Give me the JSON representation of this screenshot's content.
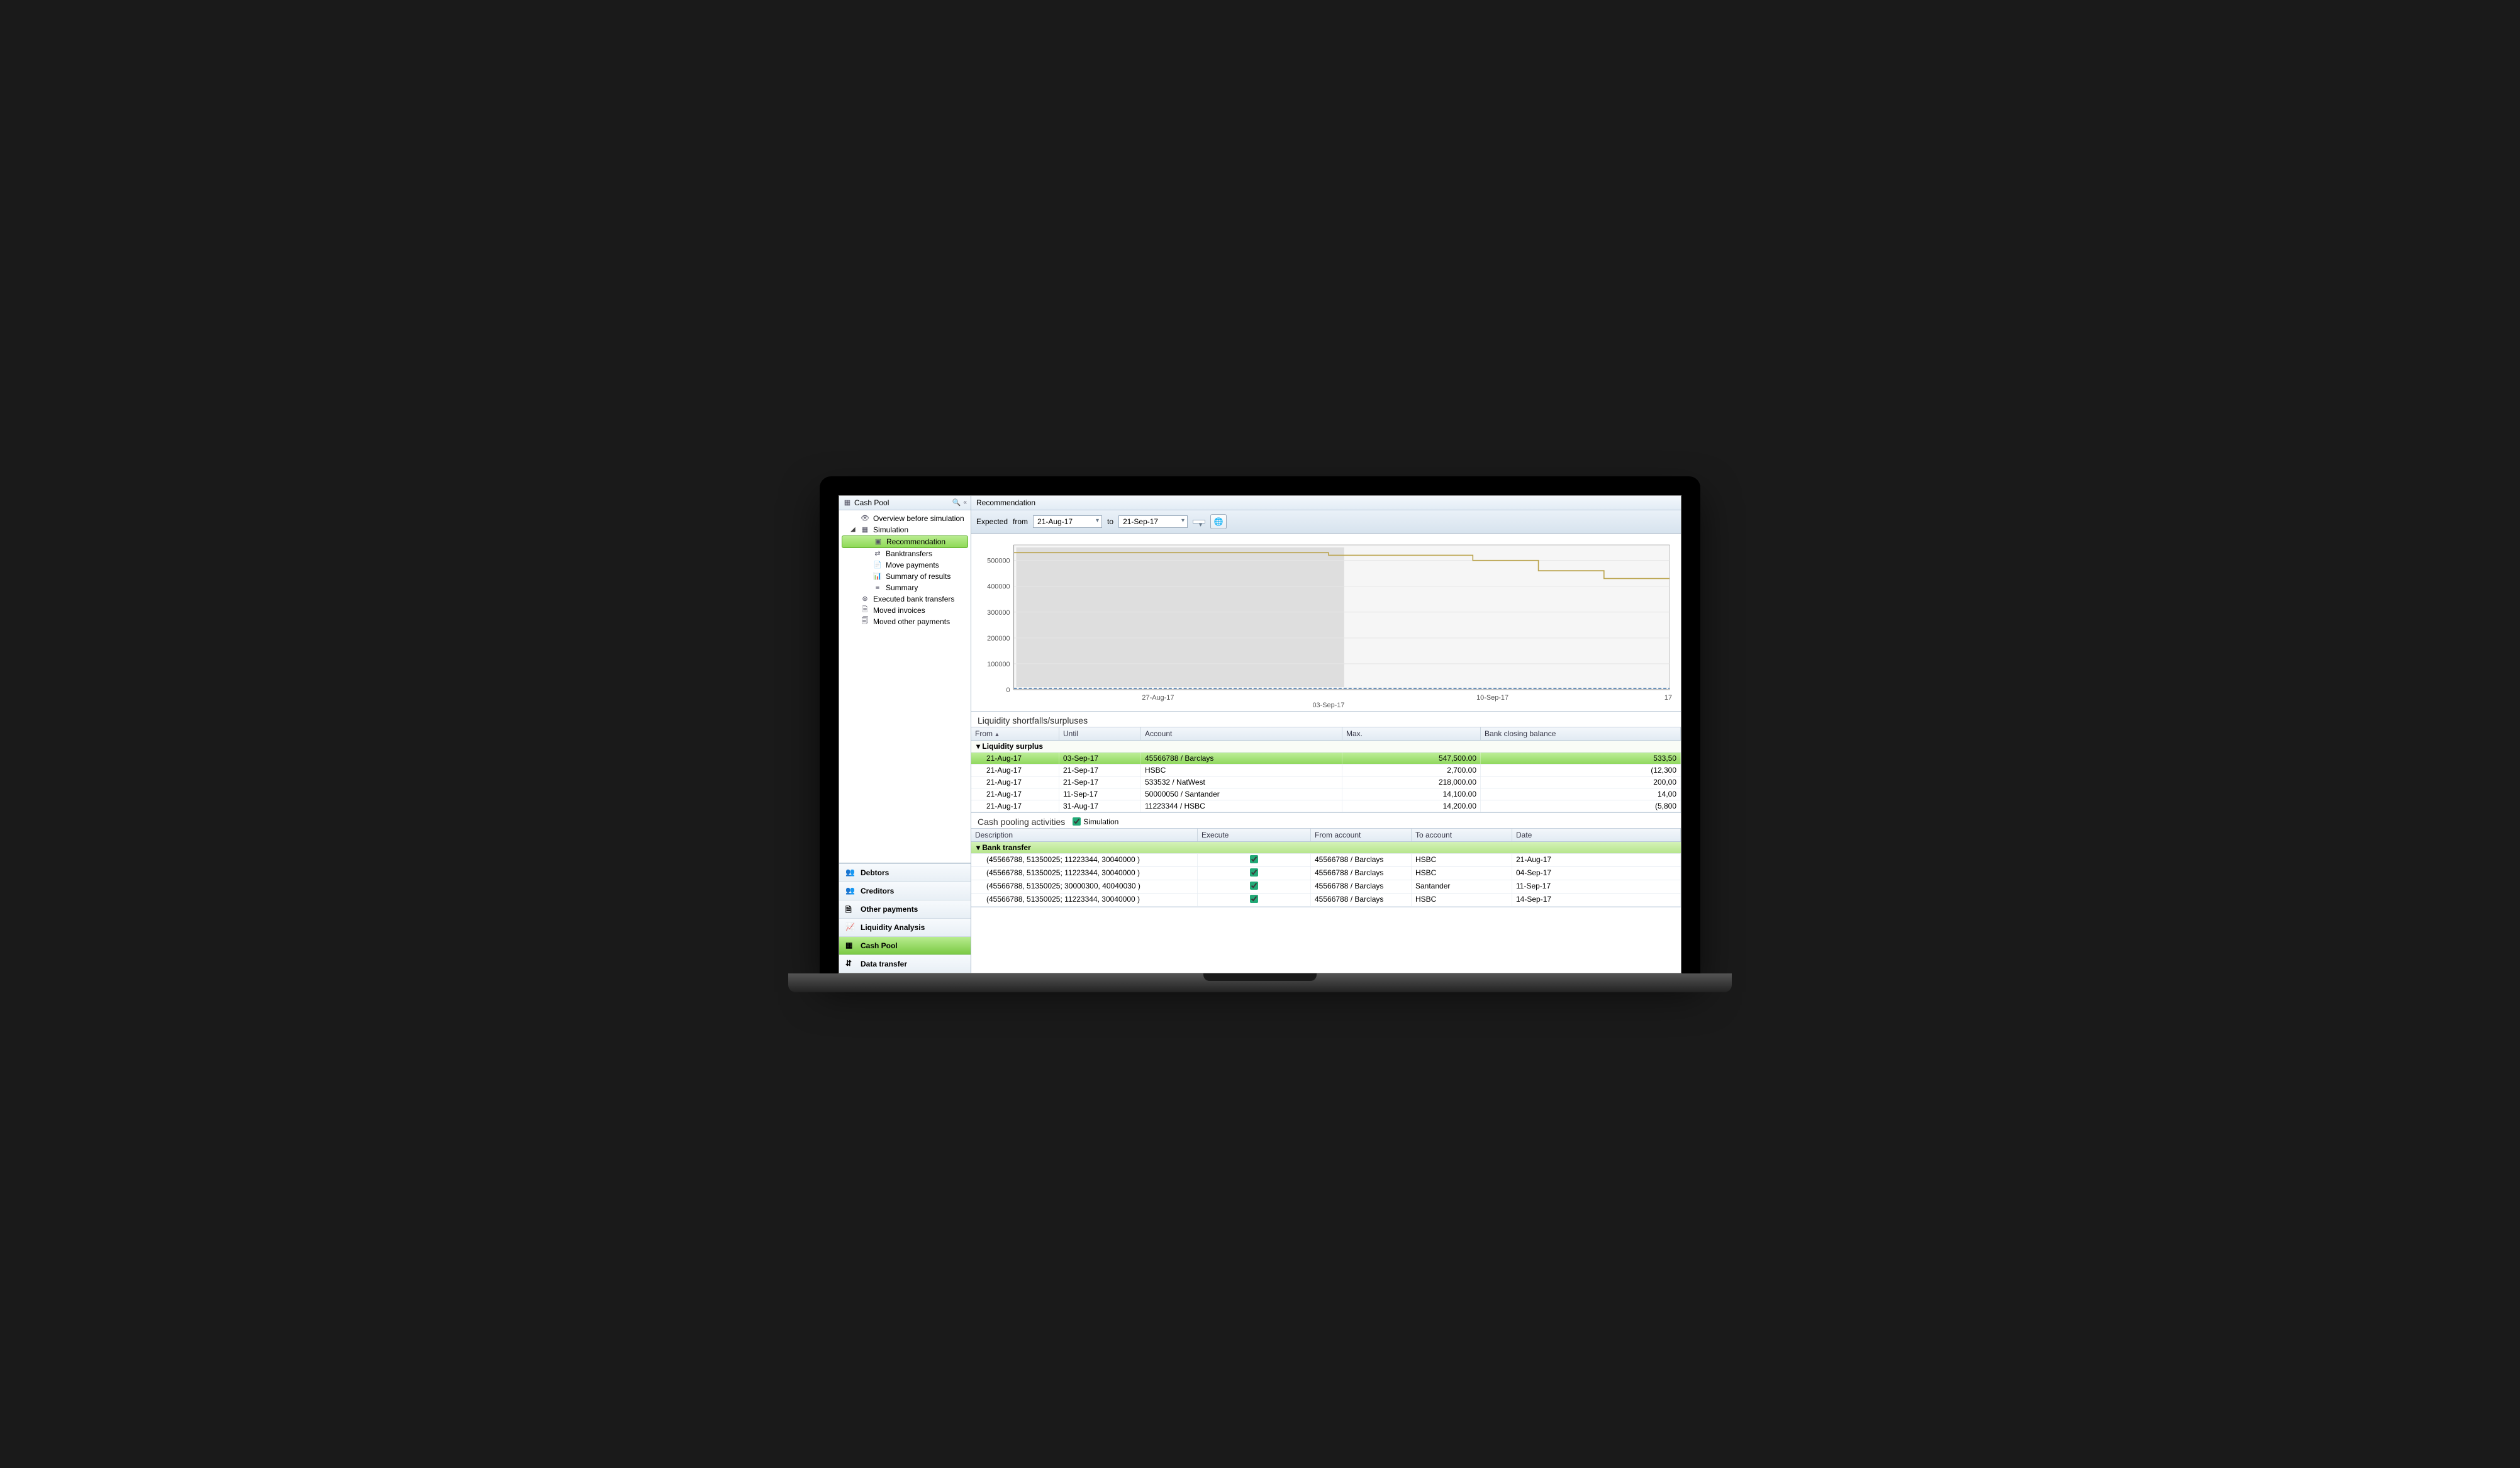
{
  "sidebar": {
    "title": "Cash Pool",
    "tree": {
      "overview": "Overview before simulation",
      "simulation": "Simulation",
      "recommendation": "Recommendation",
      "banktransfers": "Banktransfers",
      "move_payments": "Move payments",
      "summary_results": "Summary of results",
      "summary": "Summary",
      "executed": "Executed bank transfers",
      "moved_invoices": "Moved invoices",
      "moved_other": "Moved other payments"
    },
    "nav": {
      "debtors": "Debtors",
      "creditors": "Creditors",
      "other": "Other payments",
      "liquidity": "Liquidity Analysis",
      "cashpool": "Cash Pool",
      "datatransfer": "Data transfer"
    }
  },
  "main_title": "Recommendation",
  "filter": {
    "expected": "Expected",
    "from_lbl": "from",
    "from_date": "21-Aug-17",
    "to_lbl": "to",
    "to_date": "21-Sep-17"
  },
  "chart": {
    "y_ticks": [
      "0",
      "100000",
      "200000",
      "300000",
      "400000",
      "500000"
    ],
    "x_ticks": [
      "27-Aug-17",
      "03-Sep-17",
      "10-Sep-17",
      "17"
    ],
    "line_color": "#b9a24a",
    "zero_line_color": "#3a6ea5",
    "shade_color": "#d9d9d9",
    "grid_color": "#e6e6e6",
    "bg": "#f6f6f6",
    "ymax": 560000,
    "series": [
      [
        0,
        530000
      ],
      [
        0.48,
        530000
      ],
      [
        0.48,
        520000
      ],
      [
        0.7,
        520000
      ],
      [
        0.7,
        500000
      ],
      [
        0.8,
        500000
      ],
      [
        0.8,
        460000
      ],
      [
        0.9,
        460000
      ],
      [
        0.9,
        430000
      ],
      [
        1.0,
        430000
      ]
    ],
    "shade_end": 0.5
  },
  "liq_title": "Liquidity shortfalls/surpluses",
  "liq_cols": {
    "from": "From",
    "until": "Until",
    "account": "Account",
    "max": "Max.",
    "bcb": "Bank closing balance"
  },
  "liq_group": "Liquidity surplus",
  "liq_rows": [
    {
      "from": "21-Aug-17",
      "until": "03-Sep-17",
      "account": "45566788 / Barclays",
      "max": "547,500.00",
      "bcb": "533,50",
      "hl": true
    },
    {
      "from": "21-Aug-17",
      "until": "21-Sep-17",
      "account": "HSBC",
      "max": "2,700.00",
      "bcb": "(12,300"
    },
    {
      "from": "21-Aug-17",
      "until": "21-Sep-17",
      "account": "533532 / NatWest",
      "max": "218,000.00",
      "bcb": "200,00"
    },
    {
      "from": "21-Aug-17",
      "until": "11-Sep-17",
      "account": "50000050 / Santander",
      "max": "14,100.00",
      "bcb": "14,00"
    },
    {
      "from": "21-Aug-17",
      "until": "31-Aug-17",
      "account": "11223344 / HSBC",
      "max": "14,200.00",
      "bcb": "(5,800"
    }
  ],
  "act_title": "Cash pooling activities",
  "act_sim_label": "Simulation",
  "act_cols": {
    "desc": "Description",
    "exec": "Execute",
    "facct": "From account",
    "tacct": "To account",
    "date": "Date"
  },
  "act_group": "Bank transfer",
  "act_rows": [
    {
      "desc": "(45566788, 51350025; 11223344, 30040000 )",
      "facct": "45566788 / Barclays",
      "tacct": "HSBC",
      "date": "21-Aug-17"
    },
    {
      "desc": "(45566788, 51350025; 11223344, 30040000 )",
      "facct": "45566788 / Barclays",
      "tacct": "HSBC",
      "date": "04-Sep-17"
    },
    {
      "desc": "(45566788, 51350025; 30000300, 40040030 )",
      "facct": "45566788 / Barclays",
      "tacct": "Santander",
      "date": "11-Sep-17"
    },
    {
      "desc": "(45566788, 51350025; 11223344, 30040000 )",
      "facct": "45566788 / Barclays",
      "tacct": "HSBC",
      "date": "14-Sep-17"
    }
  ]
}
